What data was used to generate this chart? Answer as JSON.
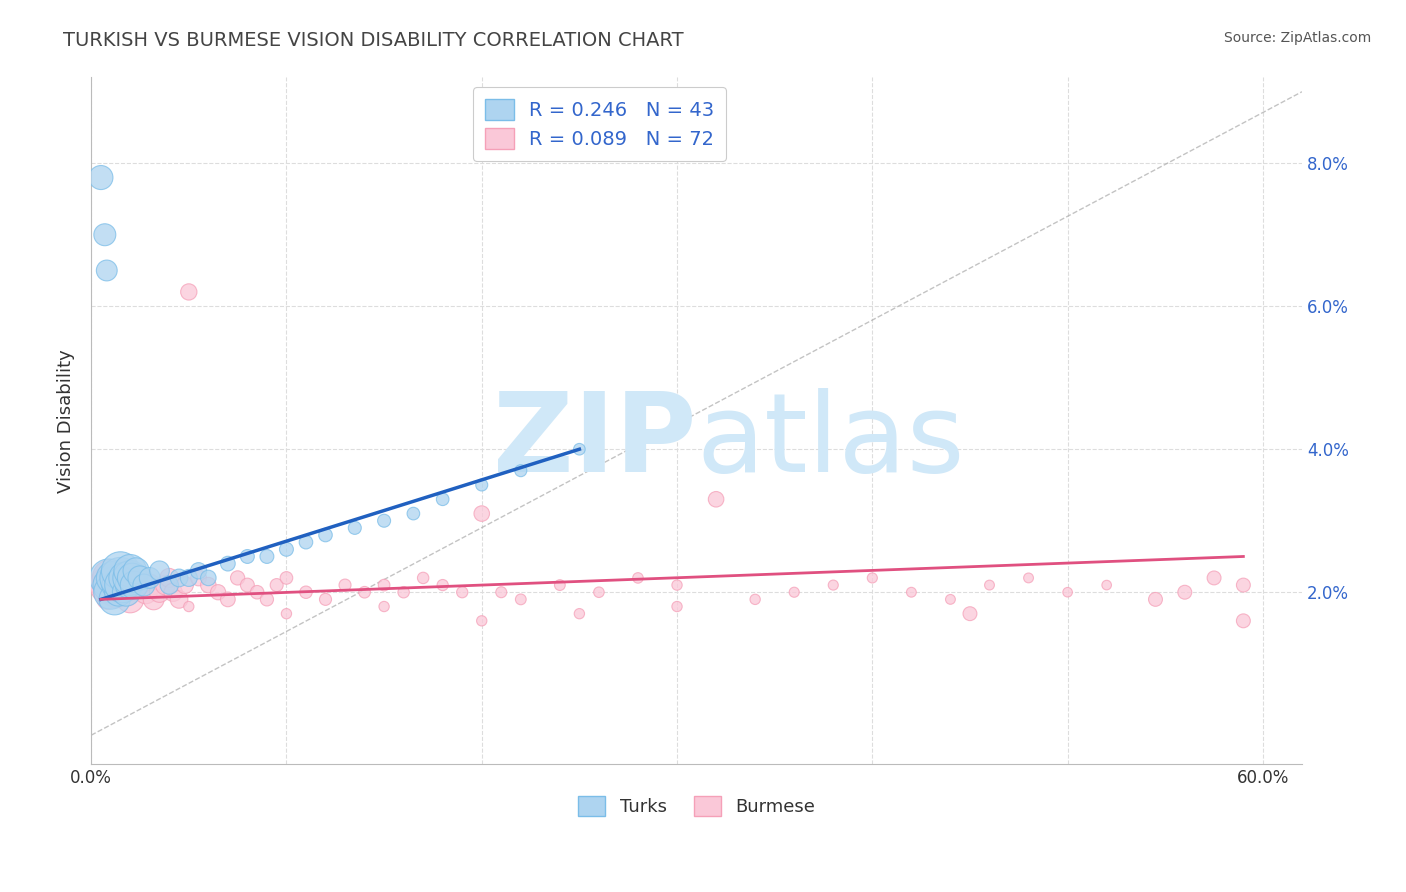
{
  "title": "TURKISH VS BURMESE VISION DISABILITY CORRELATION CHART",
  "source": "Source: ZipAtlas.com",
  "ylabel": "Vision Disability",
  "xlim": [
    0.0,
    0.62
  ],
  "ylim": [
    -0.004,
    0.092
  ],
  "yticks_right": [
    0.02,
    0.04,
    0.06,
    0.08
  ],
  "ytick_right_labels": [
    "2.0%",
    "4.0%",
    "6.0%",
    "8.0%"
  ],
  "turks_color": "#7bbde8",
  "turks_color_fill": "#aed4f0",
  "burmese_color": "#f5a0b8",
  "burmese_color_fill": "#fac8d8",
  "turks_R": 0.246,
  "turks_N": 43,
  "burmese_R": 0.089,
  "burmese_N": 72,
  "trend_blue": "#2060c0",
  "trend_pink": "#e05080",
  "diagonal_color": "#aaaaaa",
  "background_color": "#ffffff",
  "grid_color": "#dddddd",
  "title_color": "#444444",
  "legend_text_color": "#3366cc",
  "watermark_color": "#d0e8f8",
  "watermark_ZIP": "ZIP",
  "watermark_atlas": "atlas",
  "turks_x": [
    0.005,
    0.007,
    0.008,
    0.009,
    0.01,
    0.01,
    0.011,
    0.012,
    0.013,
    0.014,
    0.015,
    0.015,
    0.016,
    0.017,
    0.018,
    0.019,
    0.02,
    0.02,
    0.021,
    0.022,
    0.023,
    0.025,
    0.027,
    0.03,
    0.035,
    0.04,
    0.045,
    0.05,
    0.055,
    0.06,
    0.07,
    0.08,
    0.09,
    0.1,
    0.11,
    0.12,
    0.135,
    0.15,
    0.165,
    0.18,
    0.2,
    0.22,
    0.25
  ],
  "turks_y": [
    0.078,
    0.07,
    0.065,
    0.022,
    0.021,
    0.02,
    0.022,
    0.019,
    0.021,
    0.02,
    0.022,
    0.023,
    0.021,
    0.022,
    0.02,
    0.021,
    0.022,
    0.023,
    0.022,
    0.021,
    0.023,
    0.022,
    0.021,
    0.022,
    0.023,
    0.021,
    0.022,
    0.022,
    0.023,
    0.022,
    0.024,
    0.025,
    0.025,
    0.026,
    0.027,
    0.028,
    0.029,
    0.03,
    0.031,
    0.033,
    0.035,
    0.037,
    0.04
  ],
  "turks_sizes": [
    120,
    100,
    90,
    300,
    260,
    240,
    220,
    200,
    180,
    160,
    350,
    300,
    260,
    200,
    160,
    140,
    250,
    220,
    180,
    160,
    140,
    120,
    100,
    90,
    80,
    70,
    65,
    60,
    55,
    50,
    45,
    40,
    40,
    40,
    38,
    38,
    35,
    35,
    33,
    33,
    30,
    30,
    28
  ],
  "burmese_x": [
    0.005,
    0.007,
    0.008,
    0.009,
    0.01,
    0.012,
    0.013,
    0.015,
    0.016,
    0.018,
    0.02,
    0.022,
    0.025,
    0.028,
    0.03,
    0.032,
    0.035,
    0.038,
    0.04,
    0.042,
    0.045,
    0.048,
    0.05,
    0.055,
    0.06,
    0.065,
    0.07,
    0.075,
    0.08,
    0.085,
    0.09,
    0.095,
    0.1,
    0.11,
    0.12,
    0.13,
    0.14,
    0.15,
    0.16,
    0.17,
    0.18,
    0.19,
    0.2,
    0.21,
    0.22,
    0.24,
    0.26,
    0.28,
    0.3,
    0.32,
    0.34,
    0.36,
    0.38,
    0.4,
    0.42,
    0.44,
    0.46,
    0.48,
    0.5,
    0.52,
    0.545,
    0.56,
    0.575,
    0.59,
    0.05,
    0.1,
    0.15,
    0.2,
    0.25,
    0.3,
    0.45,
    0.59
  ],
  "burmese_y": [
    0.021,
    0.02,
    0.019,
    0.021,
    0.022,
    0.021,
    0.02,
    0.022,
    0.021,
    0.02,
    0.019,
    0.021,
    0.022,
    0.02,
    0.021,
    0.019,
    0.02,
    0.021,
    0.022,
    0.02,
    0.019,
    0.021,
    0.062,
    0.022,
    0.021,
    0.02,
    0.019,
    0.022,
    0.021,
    0.02,
    0.019,
    0.021,
    0.022,
    0.02,
    0.019,
    0.021,
    0.02,
    0.021,
    0.02,
    0.022,
    0.021,
    0.02,
    0.031,
    0.02,
    0.019,
    0.021,
    0.02,
    0.022,
    0.021,
    0.033,
    0.019,
    0.02,
    0.021,
    0.022,
    0.02,
    0.019,
    0.021,
    0.022,
    0.02,
    0.021,
    0.019,
    0.02,
    0.022,
    0.021,
    0.018,
    0.017,
    0.018,
    0.016,
    0.017,
    0.018,
    0.017,
    0.016
  ],
  "burmese_sizes": [
    100,
    90,
    80,
    300,
    280,
    220,
    200,
    250,
    180,
    160,
    150,
    130,
    120,
    110,
    100,
    90,
    85,
    80,
    75,
    70,
    65,
    60,
    55,
    52,
    50,
    48,
    45,
    42,
    40,
    38,
    36,
    35,
    33,
    32,
    30,
    30,
    28,
    28,
    27,
    27,
    26,
    26,
    50,
    25,
    24,
    24,
    23,
    23,
    22,
    50,
    22,
    21,
    21,
    21,
    20,
    20,
    20,
    20,
    19,
    19,
    40,
    40,
    40,
    40,
    22,
    22,
    22,
    22,
    22,
    22,
    40,
    40
  ],
  "turks_trend_x": [
    0.005,
    0.25
  ],
  "turks_trend_y": [
    0.019,
    0.04
  ],
  "burmese_trend_x": [
    0.005,
    0.59
  ],
  "burmese_trend_y": [
    0.019,
    0.025
  ]
}
